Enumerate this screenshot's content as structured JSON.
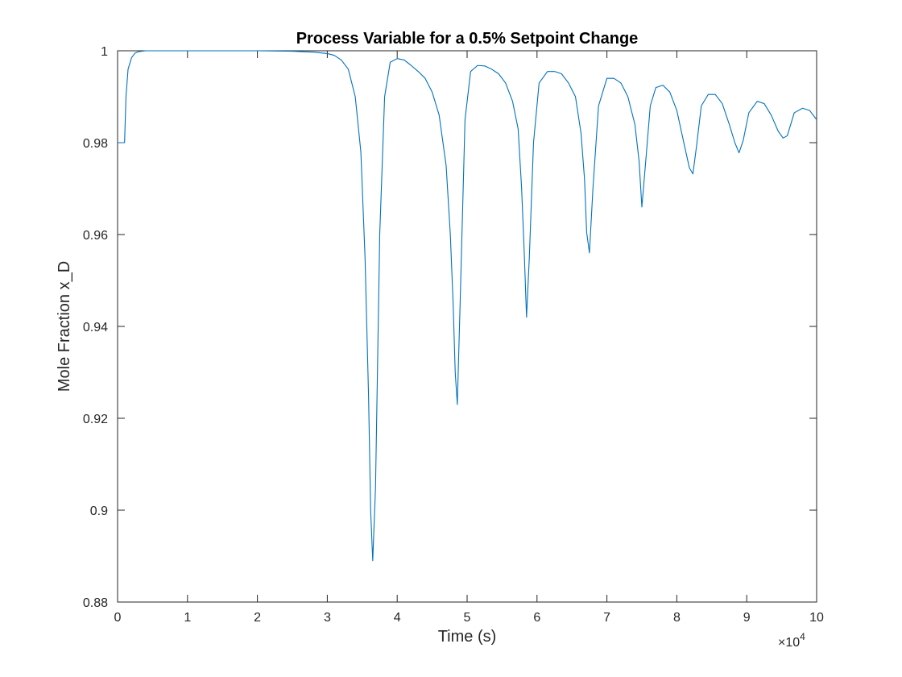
{
  "chart_data": {
    "type": "line",
    "title": "Process Variable for a 0.5% Setpoint Change",
    "xlabel": "Time (s)",
    "ylabel": "Mole Fraction x_D",
    "x_exponent_label": "×10",
    "x_exponent_power": "4",
    "xlim": [
      0,
      100000
    ],
    "ylim": [
      0.88,
      1.0
    ],
    "x_ticks": [
      0,
      10000,
      20000,
      30000,
      40000,
      50000,
      60000,
      70000,
      80000,
      90000,
      100000
    ],
    "x_tick_labels": [
      "0",
      "1",
      "2",
      "3",
      "4",
      "5",
      "6",
      "7",
      "8",
      "9",
      "10"
    ],
    "y_ticks": [
      0.88,
      0.9,
      0.92,
      0.94,
      0.96,
      0.98,
      1.0
    ],
    "y_tick_labels": [
      "0.88",
      "0.9",
      "0.92",
      "0.94",
      "0.96",
      "0.98",
      "1"
    ],
    "grid": false,
    "box": true,
    "line_color": "#0072bd",
    "series": [
      {
        "x": [
          0,
          800,
          1000,
          1200,
          1500,
          2000,
          2500,
          3000,
          4000,
          6000,
          10000,
          15000,
          20000,
          25000,
          28000,
          30000,
          31000,
          32000,
          33000,
          34000,
          34800,
          35400,
          35900,
          36200,
          36500,
          36900,
          37500,
          38200,
          39000,
          40000,
          41000,
          42000,
          43000,
          44000,
          45000,
          46000,
          47000,
          47600,
          48000,
          48300,
          48600,
          49000,
          49700,
          50500,
          51500,
          52500,
          53500,
          54500,
          55500,
          56500,
          57300,
          57800,
          58200,
          58500,
          58900,
          59500,
          60300,
          61500,
          62500,
          63500,
          64500,
          65500,
          66300,
          66800,
          67100,
          67500,
          68000,
          68800,
          70000,
          71000,
          72000,
          73000,
          74000,
          74600,
          75000,
          75500,
          76200,
          77000,
          78000,
          79000,
          80000,
          81000,
          81800,
          82300,
          82800,
          83500,
          84500,
          85500,
          86500,
          87500,
          88300,
          88900,
          89500,
          90300,
          91500,
          92500,
          93500,
          94500,
          95200,
          95800,
          96800,
          98000,
          99000,
          100000
        ],
        "y": [
          0.98,
          0.98,
          0.98,
          0.99,
          0.996,
          0.9985,
          0.9995,
          0.9998,
          1.0,
          1.0,
          1.0,
          1.0,
          1.0,
          0.9999,
          0.9997,
          0.9994,
          0.999,
          0.998,
          0.996,
          0.99,
          0.978,
          0.955,
          0.925,
          0.9,
          0.889,
          0.905,
          0.96,
          0.99,
          0.9975,
          0.9983,
          0.998,
          0.9968,
          0.9955,
          0.994,
          0.991,
          0.986,
          0.975,
          0.96,
          0.945,
          0.93,
          0.923,
          0.945,
          0.985,
          0.9955,
          0.9968,
          0.9967,
          0.996,
          0.995,
          0.993,
          0.989,
          0.983,
          0.97,
          0.955,
          0.942,
          0.955,
          0.98,
          0.993,
          0.9955,
          0.9955,
          0.995,
          0.993,
          0.99,
          0.982,
          0.972,
          0.9605,
          0.956,
          0.97,
          0.988,
          0.994,
          0.994,
          0.993,
          0.99,
          0.984,
          0.976,
          0.966,
          0.975,
          0.988,
          0.992,
          0.9925,
          0.991,
          0.987,
          0.98,
          0.9745,
          0.9732,
          0.979,
          0.988,
          0.9905,
          0.9905,
          0.9885,
          0.984,
          0.98,
          0.9778,
          0.9805,
          0.9865,
          0.989,
          0.9885,
          0.986,
          0.9825,
          0.981,
          0.9815,
          0.9865,
          0.9875,
          0.987,
          0.985
        ]
      }
    ]
  }
}
